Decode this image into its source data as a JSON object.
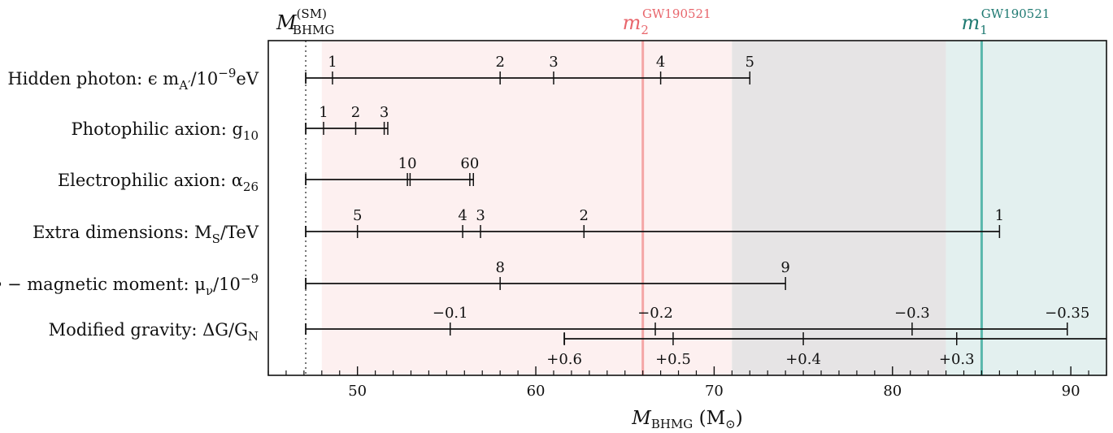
{
  "chart_data": {
    "type": "range-ladder",
    "xlabel": {
      "main": "M",
      "sub": "BHMG",
      "unit": " (M",
      "unit_sub": "⊙",
      "unit_close": ")"
    },
    "xlim": [
      45,
      92
    ],
    "xticks_major": [
      50,
      60,
      70,
      80,
      90
    ],
    "xticks_minor_step": 1,
    "ticks_direction": "in",
    "sm_line": {
      "x": 47.1,
      "label_main": "M",
      "label_sup": "(SM)",
      "label_sub": "BHMG",
      "style": "dotted",
      "color": "#555555"
    },
    "regions": [
      {
        "from": 48.0,
        "to": 71.0,
        "color": "#fdf0f0"
      },
      {
        "from": 71.0,
        "to": 83.0,
        "color": "#e6e4e5"
      },
      {
        "from": 83.0,
        "to": 92.0,
        "color": "#e3f0ef"
      }
    ],
    "vlines": [
      {
        "x": 66.0,
        "color": "#f4a6a6",
        "label_main": "m",
        "label_sub": "2",
        "label_sup": "GW190521",
        "label_color": "#e8666c"
      },
      {
        "x": 85.0,
        "color": "#5ab8ac",
        "label_main": "m",
        "label_sub": "1",
        "label_sup": "GW190521",
        "label_color": "#1f7a72"
      }
    ],
    "rows": [
      {
        "label": "Hidden photon: ϵ m",
        "label_sub": "A′",
        "label_tail": "/10",
        "label_sup": "−9",
        "label_end": "eV",
        "start": 47.1,
        "end": 72.0,
        "marks": [
          {
            "x": 48.6,
            "label": "1"
          },
          {
            "x": 58.0,
            "label": "2"
          },
          {
            "x": 61.0,
            "label": "3"
          },
          {
            "x": 67.0,
            "label": "4"
          },
          {
            "x": 72.0,
            "label": "5"
          }
        ]
      },
      {
        "label": "Photophilic axion: g",
        "label_sub": "10",
        "start": 47.1,
        "end": 51.7,
        "marks": [
          {
            "x": 48.1,
            "label": "1"
          },
          {
            "x": 49.9,
            "label": "2"
          },
          {
            "x": 51.5,
            "label": "3"
          },
          {
            "x": 51.7,
            "label": ""
          }
        ]
      },
      {
        "label": "Electrophilic axion: α",
        "label_sub": "26",
        "start": 47.1,
        "end": 56.5,
        "marks": [
          {
            "x": 52.8,
            "label": "10"
          },
          {
            "x": 52.95,
            "label": ""
          },
          {
            "x": 56.3,
            "label": "60"
          },
          {
            "x": 56.5,
            "label": ""
          }
        ]
      },
      {
        "label": "Extra dimensions:  M",
        "label_sub": "S",
        "label_tail": "/TeV",
        "start": 47.1,
        "end": 86.0,
        "marks": [
          {
            "x": 50.0,
            "label": "5"
          },
          {
            "x": 55.9,
            "label": "4"
          },
          {
            "x": 56.9,
            "label": "3"
          },
          {
            "x": 62.7,
            "label": "2"
          },
          {
            "x": 86.0,
            "label": "1"
          }
        ]
      },
      {
        "label": "ν − magnetic moment: μ",
        "label_sub": "ν",
        "label_tail": "/10",
        "label_sup": "−9",
        "start": 47.1,
        "end": 74.0,
        "marks": [
          {
            "x": 58.0,
            "label": "8"
          },
          {
            "x": 74.0,
            "label": "9"
          }
        ]
      },
      {
        "label": "Modified gravity: ΔG/G",
        "label_sub": "N",
        "start": 47.1,
        "end": 89.8,
        "marks": [
          {
            "x": 55.2,
            "label": "−0.1"
          },
          {
            "x": 66.7,
            "label": "−0.2"
          },
          {
            "x": 81.1,
            "label": "−0.3"
          },
          {
            "x": 89.8,
            "label": "−0.35"
          }
        ],
        "second_bar": {
          "start": 61.6,
          "end": 92.0,
          "marks": [
            {
              "x": 61.6,
              "label": "+0.6"
            },
            {
              "x": 67.7,
              "label": "+0.5"
            },
            {
              "x": 75.0,
              "label": "+0.4"
            },
            {
              "x": 83.6,
              "label": "+0.3"
            }
          ]
        }
      }
    ]
  }
}
